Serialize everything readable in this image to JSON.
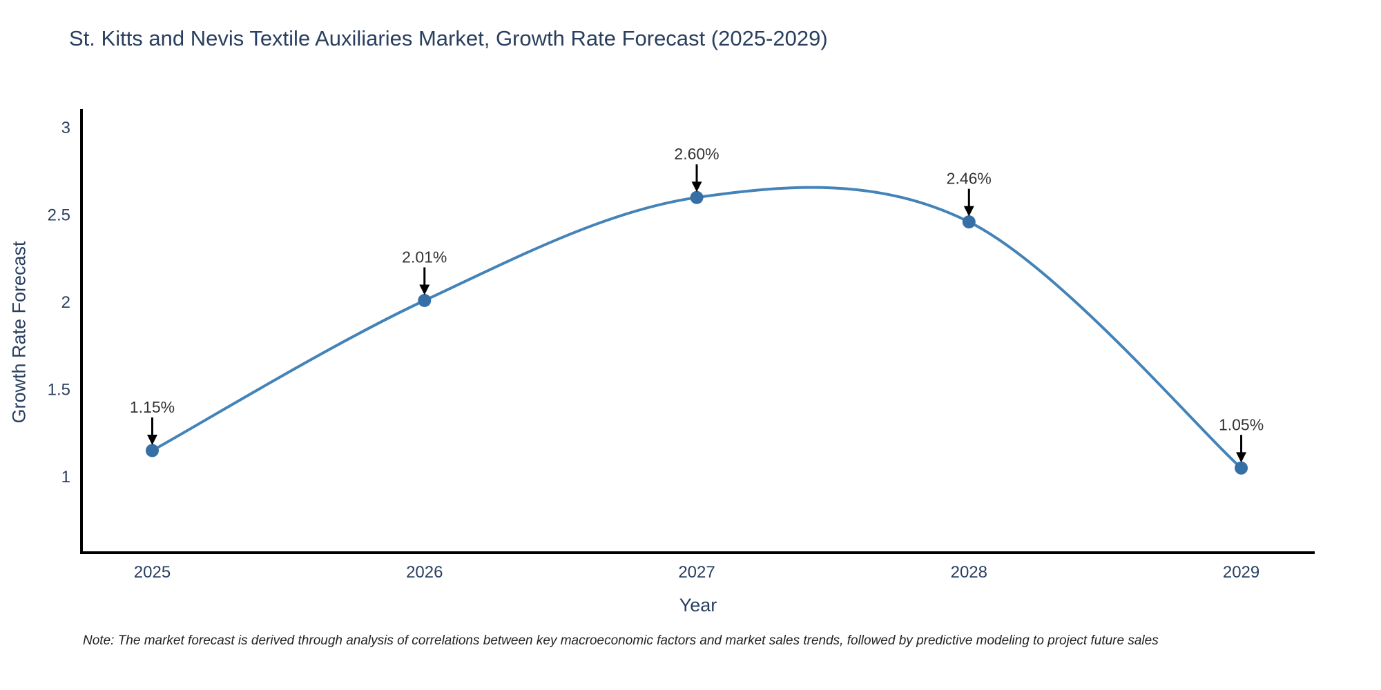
{
  "title": "St. Kitts and Nevis Textile Auxiliaries Market, Growth Rate Forecast (2025-2029)",
  "note": "Note: The market forecast is derived through analysis of correlations between key macroeconomic factors and market sales trends, followed by predictive modeling to project future sales",
  "chart_data": {
    "type": "line",
    "title": "St. Kitts and Nevis Textile Auxiliaries Market, Growth Rate Forecast (2025-2029)",
    "xlabel": "Year",
    "ylabel": "Growth Rate Forecast",
    "x": [
      2025,
      2026,
      2027,
      2028,
      2029
    ],
    "values": [
      1.15,
      2.01,
      2.6,
      2.46,
      1.05
    ],
    "point_labels": [
      "1.15%",
      "2.01%",
      "2.60%",
      "2.46%",
      "1.05%"
    ],
    "x_tick_labels": [
      "2025",
      "2026",
      "2027",
      "2028",
      "2029"
    ],
    "y_ticks": [
      1,
      1.5,
      2,
      2.5,
      3
    ],
    "y_tick_labels": [
      "1",
      "1.5",
      "2",
      "2.5",
      "3"
    ],
    "xlim": [
      2024.74,
      2029.27
    ],
    "ylim": [
      0.565,
      3.099
    ],
    "grid": false,
    "legend": "none",
    "line_shape": "spline",
    "colors": {
      "line": "#4383b8",
      "marker": "#356fa6",
      "axis": "#000000",
      "tick_text": "#2a3f5f",
      "annotation_text": "#333333",
      "arrow": "#000000",
      "background": "#ffffff"
    }
  }
}
